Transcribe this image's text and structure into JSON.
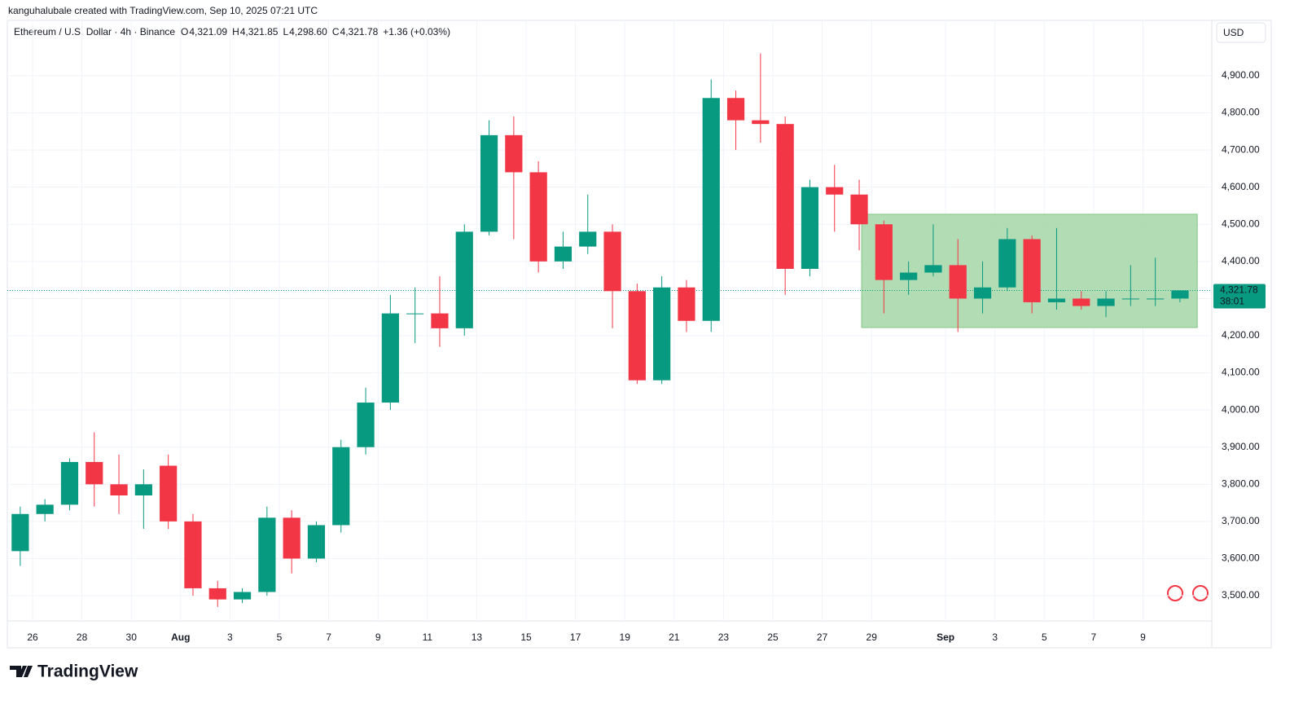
{
  "header": {
    "credit": "kanguhalubale created with TradingView.com, Sep 10, 2025 07:21 UTC",
    "brand": "TradingView"
  },
  "chart_data": {
    "type": "candlestick",
    "title": "Ethereum / U.S. Dollar · 4h · Binance",
    "legend": [
      {
        "label": "O",
        "value": "4,321.09"
      },
      {
        "label": "H",
        "value": "4,321.85"
      },
      {
        "label": "L",
        "value": "4,298.60"
      },
      {
        "label": "C",
        "value": "4,321.78"
      },
      {
        "label": "",
        "value": "+1.36 (+0.03%)"
      }
    ],
    "currency": "USD",
    "last_price": {
      "value": 4321.78,
      "label": "4,321.78",
      "countdown": "38:01"
    },
    "up_color": "#089981",
    "down_color": "#f23645",
    "x": [
      "Jul 25",
      "Jul 26",
      "Jul 27",
      "Jul 28",
      "Jul 29",
      "Jul 30",
      "Jul 31",
      "Aug 1",
      "Aug 2",
      "Aug 3",
      "Aug 4",
      "Aug 5",
      "Aug 6",
      "Aug 7",
      "Aug 8",
      "Aug 9",
      "Aug 10",
      "Aug 11",
      "Aug 12",
      "Aug 13",
      "Aug 14",
      "Aug 15",
      "Aug 16",
      "Aug 17",
      "Aug 18",
      "Aug 19",
      "Aug 20",
      "Aug 21",
      "Aug 22",
      "Aug 23",
      "Aug 24",
      "Aug 25",
      "Aug 26",
      "Aug 27",
      "Aug 28",
      "Aug 29",
      "Aug 30",
      "Aug 31",
      "Sep 1",
      "Sep 2",
      "Sep 3",
      "Sep 4",
      "Sep 5",
      "Sep 6",
      "Sep 7",
      "Sep 8",
      "Sep 9",
      "Sep 10"
    ],
    "open": [
      3620,
      3720,
      3745,
      3860,
      3800,
      3770,
      3850,
      3700,
      3520,
      3490,
      3510,
      3710,
      3600,
      3690,
      3900,
      4020,
      4260,
      4260,
      4220,
      4480,
      4740,
      4640,
      4400,
      4440,
      4480,
      4320,
      4080,
      4330,
      4240,
      4840,
      4780,
      4770,
      4380,
      4600,
      4580,
      4500,
      4350,
      4370,
      4390,
      4300,
      4330,
      4460,
      4290,
      4300,
      4280,
      4300,
      4300,
      4300
    ],
    "high": [
      3740,
      3760,
      3870,
      3940,
      3880,
      3840,
      3880,
      3720,
      3540,
      3520,
      3740,
      3730,
      3700,
      3920,
      4060,
      4310,
      4330,
      4360,
      4500,
      4780,
      4790,
      4670,
      4480,
      4580,
      4500,
      4340,
      4360,
      4350,
      4890,
      4860,
      4960,
      4790,
      4620,
      4660,
      4620,
      4510,
      4400,
      4500,
      4460,
      4400,
      4490,
      4470,
      4490,
      4320,
      4320,
      4390,
      4410,
      4322
    ],
    "low": [
      3580,
      3700,
      3730,
      3740,
      3720,
      3680,
      3680,
      3500,
      3470,
      3480,
      3500,
      3560,
      3590,
      3670,
      3880,
      4000,
      4180,
      4170,
      4200,
      4470,
      4460,
      4370,
      4380,
      4420,
      4220,
      4070,
      4070,
      4210,
      4210,
      4700,
      4720,
      4310,
      4360,
      4480,
      4430,
      4260,
      4310,
      4360,
      4210,
      4260,
      4320,
      4260,
      4270,
      4270,
      4250,
      4280,
      4280,
      4290
    ],
    "close": [
      3720,
      3745,
      3860,
      3800,
      3770,
      3800,
      3700,
      3520,
      3490,
      3510,
      3710,
      3600,
      3690,
      3900,
      4020,
      4260,
      4260,
      4220,
      4480,
      4740,
      4640,
      4400,
      4440,
      4480,
      4320,
      4080,
      4330,
      4240,
      4840,
      4780,
      4770,
      4380,
      4600,
      4580,
      4500,
      4350,
      4370,
      4390,
      4300,
      4330,
      4460,
      4290,
      4300,
      4280,
      4300,
      4300,
      4300,
      4322
    ],
    "ylim": [
      3476,
      5049
    ],
    "yticks": [
      {
        "value": 3500,
        "label": "3,500.00"
      },
      {
        "value": 3600,
        "label": "3,600.00"
      },
      {
        "value": 3700,
        "label": "3,700.00"
      },
      {
        "value": 3800,
        "label": "3,800.00"
      },
      {
        "value": 3900,
        "label": "3,900.00"
      },
      {
        "value": 4000,
        "label": "4,000.00"
      },
      {
        "value": 4100,
        "label": "4,100.00"
      },
      {
        "value": 4200,
        "label": "4,200.00"
      },
      {
        "value": 4300,
        "label": "4,300.00"
      },
      {
        "value": 4400,
        "label": "4,400.00"
      },
      {
        "value": 4500,
        "label": "4,500.00"
      },
      {
        "value": 4600,
        "label": "4,600.00"
      },
      {
        "value": 4700,
        "label": "4,700.00"
      },
      {
        "value": 4800,
        "label": "4,800.00"
      },
      {
        "value": 4900,
        "label": "4,900.00"
      }
    ],
    "xticks": [
      {
        "value": "Jul 26",
        "label": "26"
      },
      {
        "value": "Jul 28",
        "label": "28"
      },
      {
        "value": "Jul 30",
        "label": "30"
      },
      {
        "value": "Aug 1",
        "label": "Aug"
      },
      {
        "value": "Aug 3",
        "label": "3"
      },
      {
        "value": "Aug 5",
        "label": "5"
      },
      {
        "value": "Aug 7",
        "label": "7"
      },
      {
        "value": "Aug 9",
        "label": "9"
      },
      {
        "value": "Aug 11",
        "label": "11"
      },
      {
        "value": "Aug 13",
        "label": "13"
      },
      {
        "value": "Aug 15",
        "label": "15"
      },
      {
        "value": "Aug 17",
        "label": "17"
      },
      {
        "value": "Aug 19",
        "label": "19"
      },
      {
        "value": "Aug 21",
        "label": "21"
      },
      {
        "value": "Aug 23",
        "label": "23"
      },
      {
        "value": "Aug 25",
        "label": "25"
      },
      {
        "value": "Aug 27",
        "label": "27"
      },
      {
        "value": "Aug 29",
        "label": "29"
      },
      {
        "value": "Sep 1",
        "label": "Sep"
      },
      {
        "value": "Sep 3",
        "label": "3"
      },
      {
        "value": "Sep 5",
        "label": "5"
      },
      {
        "value": "Sep 7",
        "label": "7"
      },
      {
        "value": "Sep 9",
        "label": "9"
      }
    ],
    "grid": true,
    "range_box": {
      "x": [
        "Aug 28",
        "Sep 10"
      ],
      "y": [
        4222,
        4527
      ],
      "color": "#a5d6a7"
    }
  }
}
